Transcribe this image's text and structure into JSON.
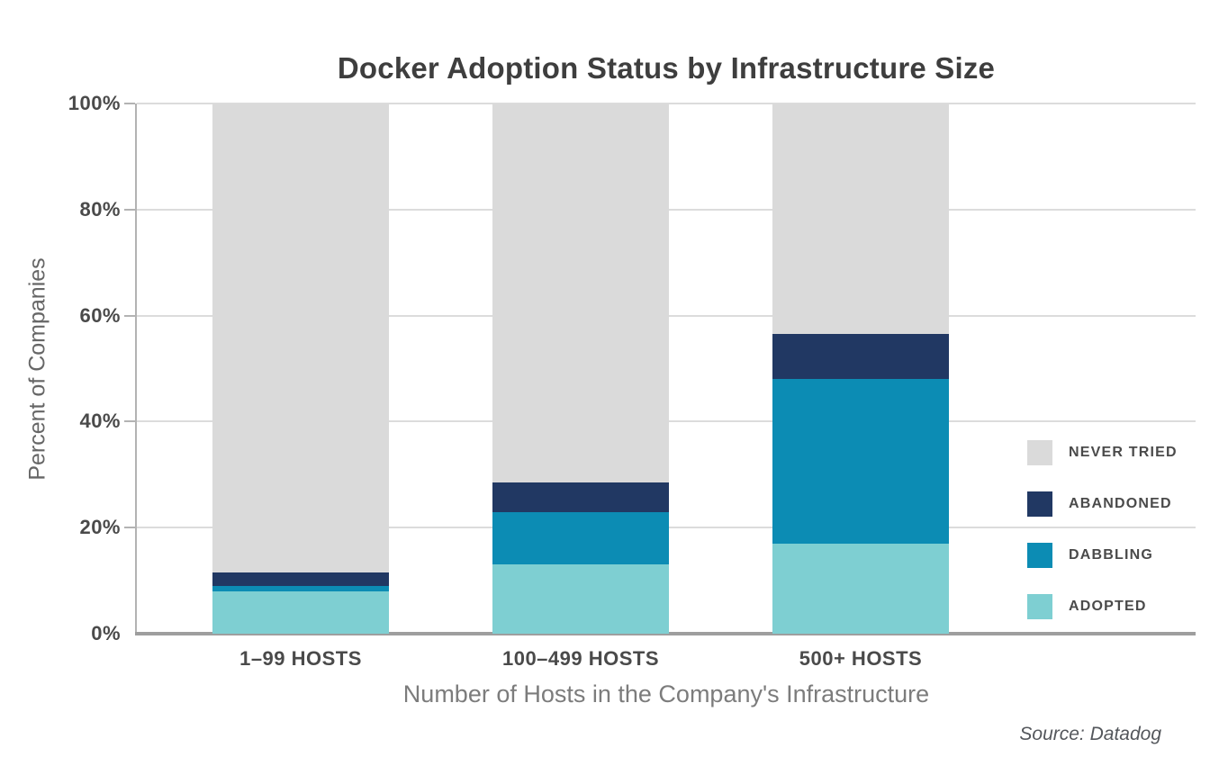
{
  "source": {
    "text": "Source: Datadog"
  },
  "chart_data": {
    "type": "bar",
    "stacked": true,
    "title": "Docker Adoption Status by Infrastructure Size",
    "xlabel": "Number of Hosts in the Company's Infrastructure",
    "ylabel": "Percent of Companies",
    "categories": [
      "1–99 HOSTS",
      "100–499 HOSTS",
      "500+ HOSTS"
    ],
    "series": [
      {
        "name": "ADOPTED",
        "color": "#7ecfd2",
        "values": [
          8,
          13,
          17
        ]
      },
      {
        "name": "DABBLING",
        "color": "#0c8cb4",
        "values": [
          1,
          10,
          31
        ]
      },
      {
        "name": "ABANDONED",
        "color": "#213863",
        "values": [
          2.5,
          5.5,
          8.5
        ]
      },
      {
        "name": "NEVER TRIED",
        "color": "#dadada",
        "values": [
          88.5,
          71.5,
          43.5
        ]
      }
    ],
    "y_ticks": [
      "0%",
      "20%",
      "40%",
      "60%",
      "80%",
      "100%"
    ],
    "ylim": [
      0,
      100
    ],
    "grid": true,
    "legend_position": "right",
    "legend_order": [
      "NEVER TRIED",
      "ABANDONED",
      "DABBLING",
      "ADOPTED"
    ]
  }
}
